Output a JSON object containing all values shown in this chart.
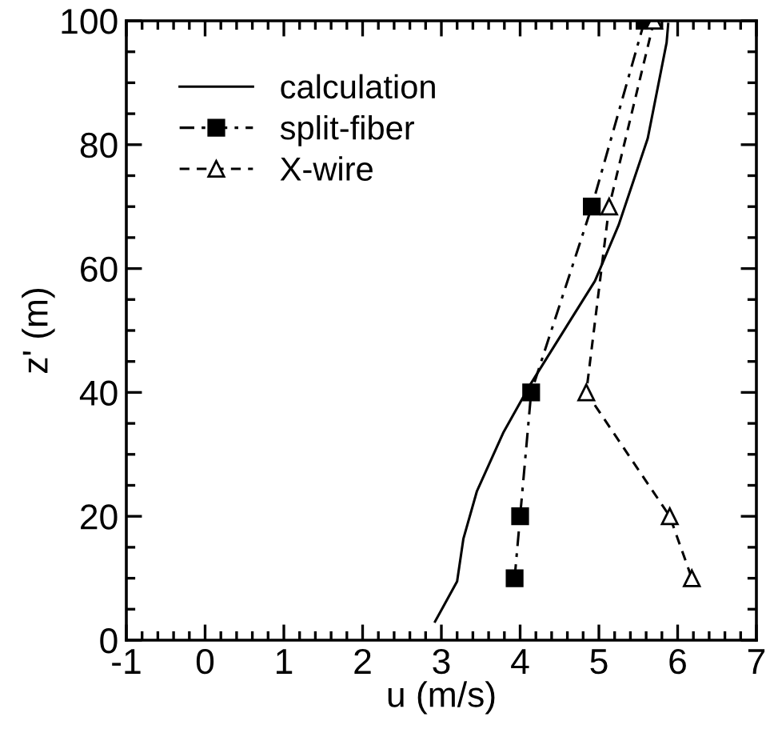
{
  "chart_data": {
    "type": "line",
    "xlabel": "u (m/s)",
    "ylabel": "z' (m)",
    "xlim": [
      -1,
      7
    ],
    "ylim": [
      0,
      100
    ],
    "xticks": [
      -1,
      0,
      1,
      2,
      3,
      4,
      5,
      6,
      7
    ],
    "yticks": [
      0,
      20,
      40,
      60,
      80,
      100
    ],
    "grid": false,
    "legend": "top left",
    "series": [
      {
        "name": "calculation",
        "color": "#000000",
        "line_style": "solid",
        "marker": "none",
        "x": [
          2.92,
          3.2,
          3.28,
          3.45,
          3.79,
          4.13,
          4.64,
          4.95,
          5.25,
          5.62,
          5.86,
          5.88
        ],
        "values": [
          3,
          9.5,
          16.4,
          24,
          33.6,
          41.3,
          51.7,
          58,
          67,
          81,
          96.5,
          99.5
        ]
      },
      {
        "name": "split-fiber",
        "color": "#000000",
        "line_style": "dashdot",
        "marker": "square",
        "x": [
          5.58,
          4.91,
          4.14,
          4.0,
          3.93
        ],
        "values": [
          100,
          70,
          40,
          20,
          10
        ]
      },
      {
        "name": "X-wire",
        "color": "#000000",
        "line_style": "dashed",
        "marker": "triangle",
        "x": [
          5.7,
          5.13,
          4.84,
          5.9,
          6.18
        ],
        "values": [
          100,
          70,
          40,
          20,
          10
        ]
      }
    ]
  }
}
